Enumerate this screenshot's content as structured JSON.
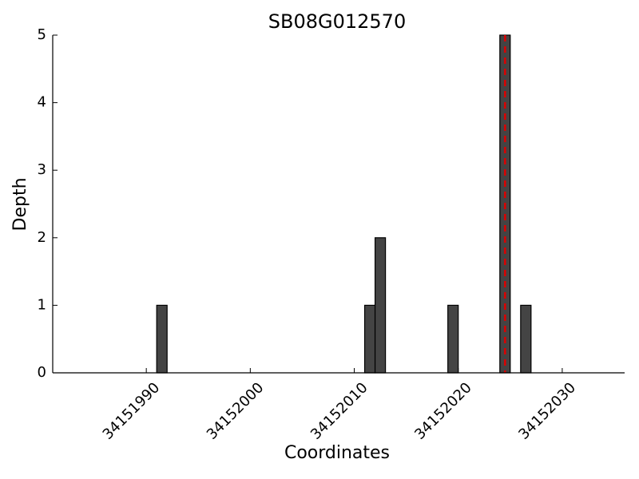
{
  "chart_data": {
    "type": "bar",
    "title": "SB08G012570",
    "x_label": "Coordinates",
    "y_label": "Depth",
    "x": [
      34151991,
      34152011,
      34152012,
      34152019,
      34152024,
      34152026
    ],
    "values": [
      1,
      1,
      2,
      1,
      5,
      1
    ],
    "bar_width": 1,
    "color": "#444444",
    "xlim": [
      34151981,
      34152036
    ],
    "xticks": [
      34151990,
      34152000,
      34152010,
      34152020,
      34152030
    ],
    "ylim": [
      0,
      5
    ],
    "yticks": [
      0,
      1,
      2,
      3,
      4,
      5
    ],
    "vline": 34152024.5,
    "vline_color": "#dd0000",
    "grid": false
  }
}
